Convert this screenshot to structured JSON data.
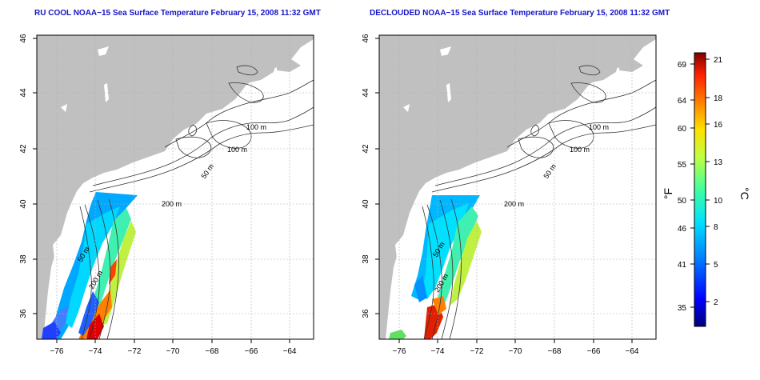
{
  "maps": [
    {
      "title": "RU COOL NOAA−15 Sea Surface Temperature February 15, 2008 11:32 GMT",
      "x_ticks": [
        "−76",
        "−74",
        "−72",
        "−70",
        "−68",
        "−66",
        "−64"
      ],
      "y_ticks": [
        "36",
        "38",
        "40",
        "42",
        "44",
        "46"
      ],
      "contour_labels": [
        "100 m",
        "100 m",
        "50 m",
        "200 m",
        "50 m",
        "200 m"
      ]
    },
    {
      "title": "DECLOUDED NOAA−15 Sea Surface Temperature February 15, 2008 11:32 GMT",
      "x_ticks": [
        "−76",
        "−74",
        "−72",
        "−70",
        "−68",
        "−66",
        "−64"
      ],
      "y_ticks": [
        "36",
        "38",
        "40",
        "42",
        "44",
        "46"
      ],
      "contour_labels": [
        "100 m",
        "100 m",
        "50 m",
        "200 m",
        "50 m",
        "200 m"
      ]
    }
  ],
  "colorbar": {
    "fahrenheit_label": "°F",
    "celsius_label": "°C",
    "fahrenheit_ticks": [
      "69",
      "64",
      "60",
      "55",
      "50",
      "46",
      "41",
      "35"
    ],
    "celsius_ticks": [
      "21",
      "18",
      "16",
      "13",
      "10",
      "8",
      "5",
      "2"
    ],
    "colors": [
      "#000080",
      "#0000ff",
      "#0080ff",
      "#00ffff",
      "#80ff80",
      "#ffff00",
      "#ff8000",
      "#ff0000",
      "#800000"
    ]
  },
  "colors": {
    "land": "#c0c0c0",
    "contour": "#303030",
    "title": "#1515c8"
  }
}
